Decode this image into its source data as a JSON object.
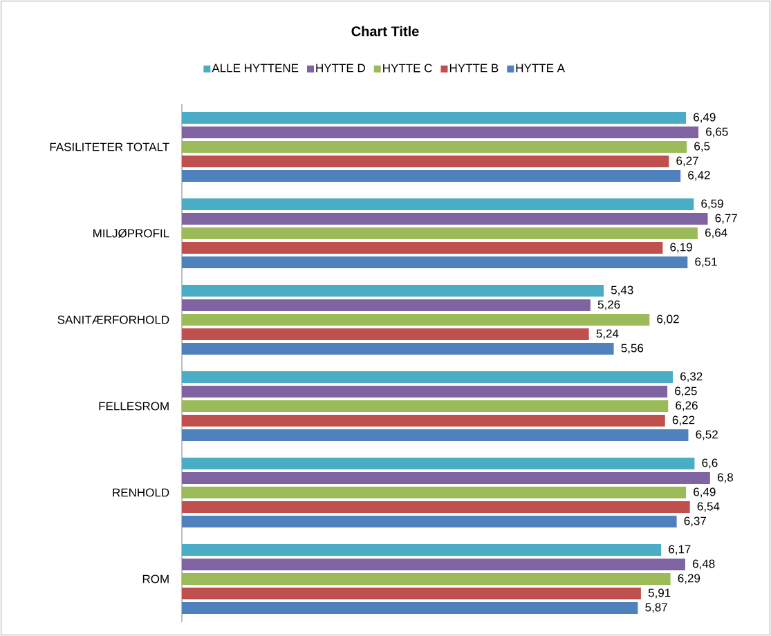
{
  "chart_data": {
    "type": "bar",
    "orientation": "horizontal",
    "title": "Chart Title",
    "categories": [
      "FASILITETER TOTALT",
      "MILJØPROFIL",
      "SANITÆRFORHOLD",
      "FELLESROM",
      "RENHOLD",
      "ROM"
    ],
    "legend": "top",
    "series": [
      {
        "name": "ALLE HYTTENE",
        "color": "#4bacc6",
        "values": [
          6.49,
          6.59,
          5.43,
          6.32,
          6.6,
          6.17
        ],
        "value_labels": [
          "6,49",
          "6,59",
          "5,43",
          "6,32",
          "6,6",
          "6,17"
        ]
      },
      {
        "name": "HYTTE D",
        "color": "#8064a2",
        "values": [
          6.65,
          6.77,
          5.26,
          6.25,
          6.8,
          6.48
        ],
        "value_labels": [
          "6,65",
          "6,77",
          "5,26",
          "6,25",
          "6,8",
          "6,48"
        ]
      },
      {
        "name": "HYTTE C",
        "color": "#9bbb59",
        "values": [
          6.5,
          6.64,
          6.02,
          6.26,
          6.49,
          6.29
        ],
        "value_labels": [
          "6,5",
          "6,64",
          "6,02",
          "6,26",
          "6,49",
          "6,29"
        ]
      },
      {
        "name": "HYTTE B",
        "color": "#c0504d",
        "values": [
          6.27,
          6.19,
          5.24,
          6.22,
          6.54,
          5.91
        ],
        "value_labels": [
          "6,27",
          "6,19",
          "5,24",
          "6,22",
          "6,54",
          "5,91"
        ]
      },
      {
        "name": "HYTTE A",
        "color": "#4f81bd",
        "values": [
          6.42,
          6.51,
          5.56,
          6.52,
          6.37,
          5.87
        ],
        "value_labels": [
          "6,42",
          "6,51",
          "5,56",
          "6,52",
          "6,37",
          "5,87"
        ]
      }
    ]
  }
}
